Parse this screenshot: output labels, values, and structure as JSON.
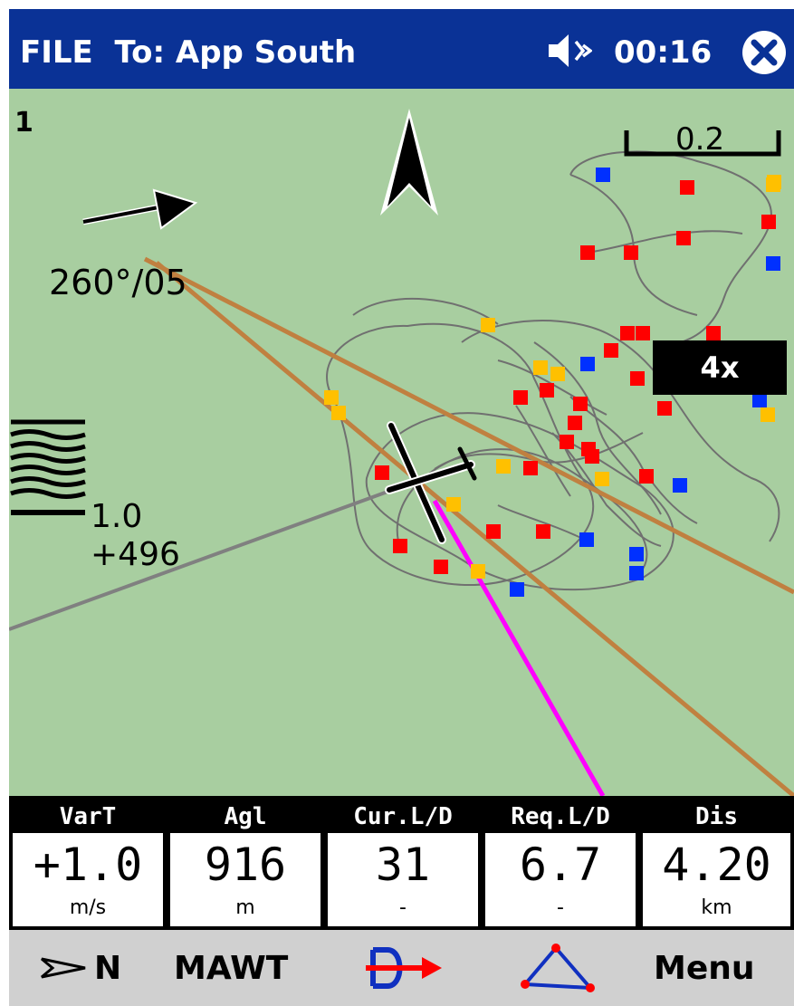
{
  "titlebar": {
    "title": "FILE  To: App South",
    "clock": "00:16",
    "speaker_icon": "speaker-muted-icon",
    "close_icon": "close-icon",
    "color": "#0a3296"
  },
  "map": {
    "page_number": "1",
    "wind": "260°/05",
    "vario_value": "1.0",
    "altitude_diff": "+496",
    "scale_label": "0.2",
    "zoom_label": "4x",
    "background_color": "#a8cea0",
    "north_arrow_icon": "north-arrow-icon",
    "wind_arrow_icon": "wind-arrow-icon",
    "glider_icon": "glider-icon",
    "vario_bars_icon": "vario-bars-icon",
    "waypoint_colors": {
      "red": "#ff0000",
      "yellow": "#ffc000",
      "blue": "#0030ff"
    },
    "track_color": "#ff00ff",
    "task_leg_color": "#c08040"
  },
  "infobar": {
    "cells": [
      {
        "label": "VarT",
        "value": "+1.0",
        "unit": "m/s"
      },
      {
        "label": "Agl",
        "value": "916",
        "unit": "m"
      },
      {
        "label": "Cur.L/D",
        "value": "31",
        "unit": "-"
      },
      {
        "label": "Req.L/D",
        "value": "6.7",
        "unit": "-"
      },
      {
        "label": "Dis",
        "value": "4.20",
        "unit": "km"
      }
    ]
  },
  "menubar": {
    "north_label": "N",
    "north_icon": "arrow-north-icon",
    "mawt_label": "MAWT",
    "goto_icon": "goto-waypoint-icon",
    "task_icon": "task-triangle-icon",
    "menu_label": "Menu"
  }
}
